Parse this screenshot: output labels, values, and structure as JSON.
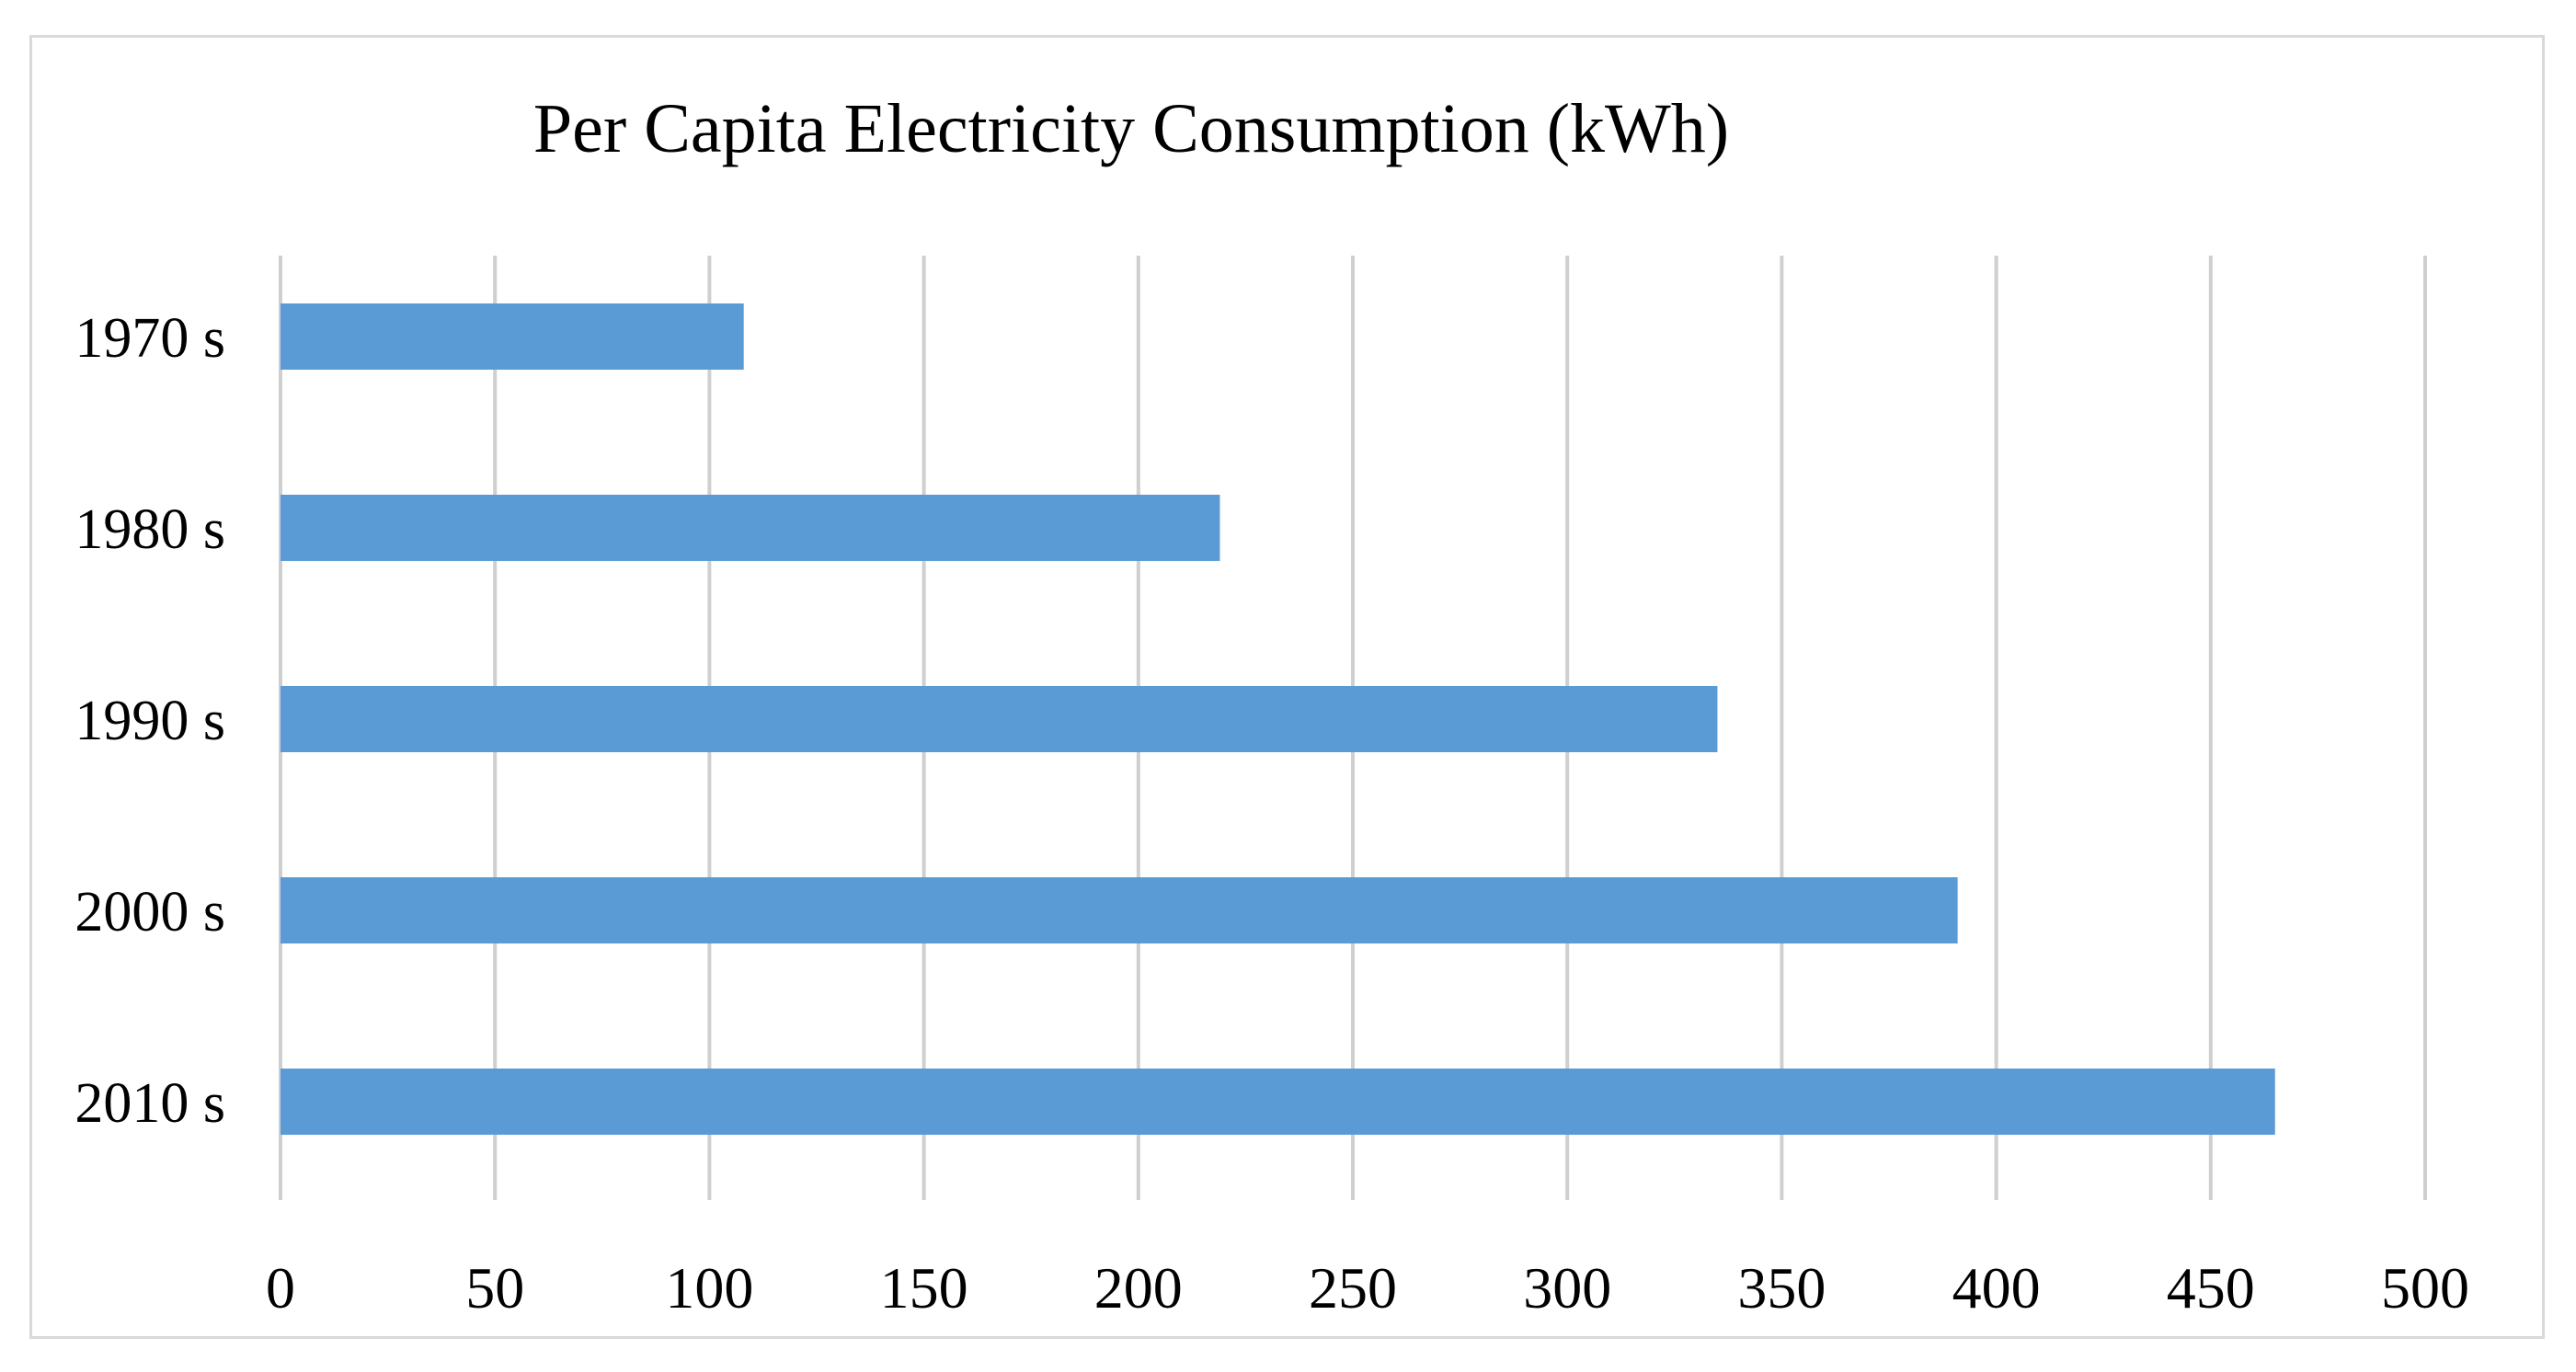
{
  "chart_data": {
    "type": "bar",
    "orientation": "horizontal",
    "title": "Per Capita Electricity Consumption (kWh)",
    "categories": [
      "1970 s",
      "1980 s",
      "1990 s",
      "2000 s",
      "2010 s"
    ],
    "values": [
      108,
      219,
      335,
      391,
      465
    ],
    "xlabel": "",
    "ylabel": "",
    "xlim": [
      0,
      500
    ],
    "x_ticks": [
      0,
      50,
      100,
      150,
      200,
      250,
      300,
      350,
      400,
      450,
      500
    ],
    "grid": true,
    "bar_color": "#5B9BD5",
    "grid_color": "#cfcfcf"
  }
}
